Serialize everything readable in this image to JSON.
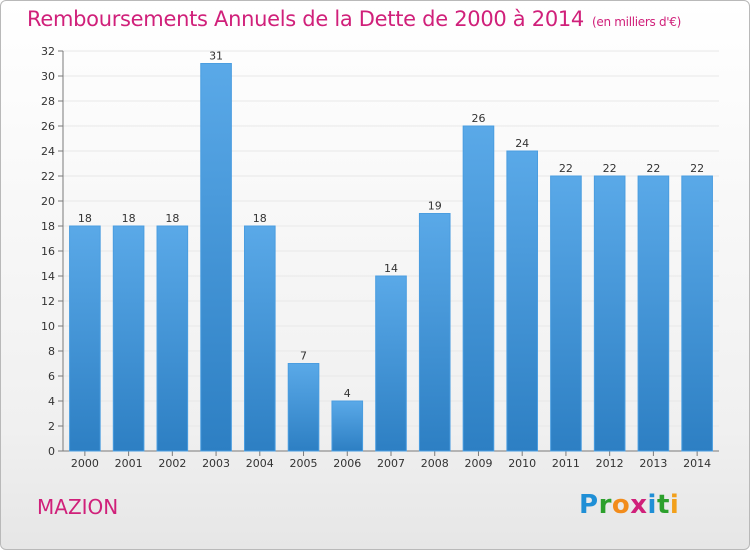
{
  "header": {
    "title": "Remboursements Annuels de la Dette de 2000 à 2014",
    "unit": "(en milliers d'€)"
  },
  "footer": {
    "commune": "MAZION",
    "logo_letters": [
      "P",
      "r",
      "o",
      "x",
      "i",
      "t",
      "i"
    ],
    "logo_colors": [
      "#1f8fd6",
      "#2ca02c",
      "#f28c1b",
      "#d0207a",
      "#1f8fd6",
      "#2ca02c",
      "#f2a01b"
    ]
  },
  "colors": {
    "accent": "#d0207a",
    "bar_top": "#5aa9e8",
    "bar_bottom": "#2d7fc3",
    "bar_edge": "#4a9de0",
    "grid": "#e8e8e8",
    "axis": "#7a7a7a",
    "label": "#333333"
  },
  "chart_data": {
    "type": "bar",
    "categories": [
      "2000",
      "2001",
      "2002",
      "2003",
      "2004",
      "2005",
      "2006",
      "2007",
      "2008",
      "2009",
      "2010",
      "2011",
      "2012",
      "2013",
      "2014"
    ],
    "values": [
      18,
      18,
      18,
      31,
      18,
      7,
      4,
      14,
      19,
      26,
      24,
      22,
      22,
      22,
      22
    ],
    "data_labels": [
      "18",
      "18",
      "18",
      "31",
      "18",
      "7",
      "4",
      "14",
      "19",
      "26",
      "24",
      "22",
      "22",
      "22",
      "22"
    ],
    "yticks": [
      "0",
      "2",
      "4",
      "6",
      "8",
      "10",
      "12",
      "14",
      "16",
      "18",
      "20",
      "22",
      "24",
      "26",
      "28",
      "30",
      "32"
    ],
    "ylim": [
      0,
      32
    ],
    "grid": true
  }
}
